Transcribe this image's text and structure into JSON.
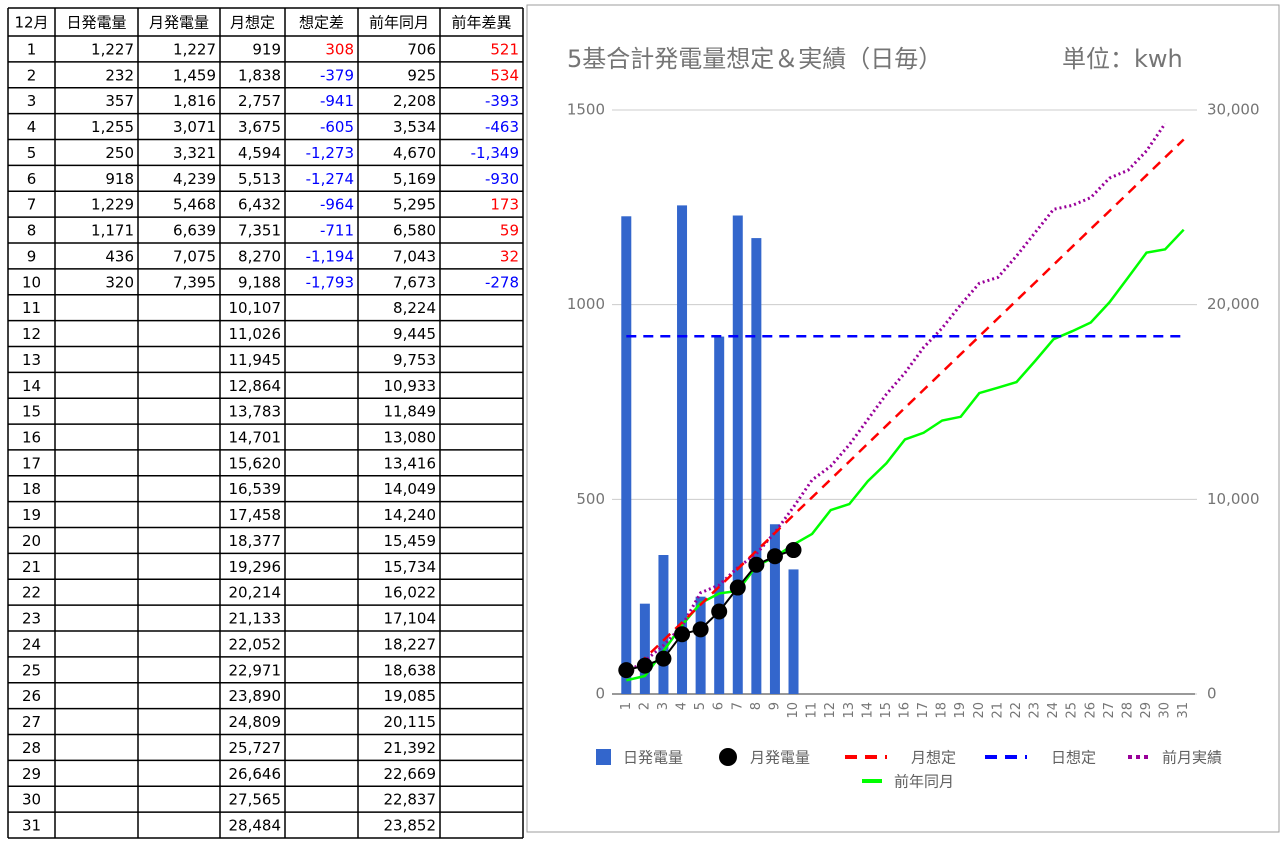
{
  "table": {
    "header": [
      "12月",
      "日発電量",
      "月発電量",
      "月想定",
      "想定差",
      "前年同月",
      "前年差異"
    ],
    "positive_color": "#ff0000",
    "negative_color": "#0000ff",
    "colored_columns": [
      4,
      6
    ],
    "rows": [
      [
        "1",
        "1,227",
        "1,227",
        "919",
        "308",
        "706",
        "521"
      ],
      [
        "2",
        "232",
        "1,459",
        "1,838",
        "-379",
        "925",
        "534"
      ],
      [
        "3",
        "357",
        "1,816",
        "2,757",
        "-941",
        "2,208",
        "-393"
      ],
      [
        "4",
        "1,255",
        "3,071",
        "3,675",
        "-605",
        "3,534",
        "-463"
      ],
      [
        "5",
        "250",
        "3,321",
        "4,594",
        "-1,273",
        "4,670",
        "-1,349"
      ],
      [
        "6",
        "918",
        "4,239",
        "5,513",
        "-1,274",
        "5,169",
        "-930"
      ],
      [
        "7",
        "1,229",
        "5,468",
        "6,432",
        "-964",
        "5,295",
        "173"
      ],
      [
        "8",
        "1,171",
        "6,639",
        "7,351",
        "-711",
        "6,580",
        "59"
      ],
      [
        "9",
        "436",
        "7,075",
        "8,270",
        "-1,194",
        "7,043",
        "32"
      ],
      [
        "10",
        "320",
        "7,395",
        "9,188",
        "-1,793",
        "7,673",
        "-278"
      ],
      [
        "11",
        null,
        null,
        "10,107",
        null,
        "8,224",
        null
      ],
      [
        "12",
        null,
        null,
        "11,026",
        null,
        "9,445",
        null
      ],
      [
        "13",
        null,
        null,
        "11,945",
        null,
        "9,753",
        null
      ],
      [
        "14",
        null,
        null,
        "12,864",
        null,
        "10,933",
        null
      ],
      [
        "15",
        null,
        null,
        "13,783",
        null,
        "11,849",
        null
      ],
      [
        "16",
        null,
        null,
        "14,701",
        null,
        "13,080",
        null
      ],
      [
        "17",
        null,
        null,
        "15,620",
        null,
        "13,416",
        null
      ],
      [
        "18",
        null,
        null,
        "16,539",
        null,
        "14,049",
        null
      ],
      [
        "19",
        null,
        null,
        "17,458",
        null,
        "14,240",
        null
      ],
      [
        "20",
        null,
        null,
        "18,377",
        null,
        "15,459",
        null
      ],
      [
        "21",
        null,
        null,
        "19,296",
        null,
        "15,734",
        null
      ],
      [
        "22",
        null,
        null,
        "20,214",
        null,
        "16,022",
        null
      ],
      [
        "23",
        null,
        null,
        "21,133",
        null,
        "17,104",
        null
      ],
      [
        "24",
        null,
        null,
        "22,052",
        null,
        "18,227",
        null
      ],
      [
        "25",
        null,
        null,
        "22,971",
        null,
        "18,638",
        null
      ],
      [
        "26",
        null,
        null,
        "23,890",
        null,
        "19,085",
        null
      ],
      [
        "27",
        null,
        null,
        "24,809",
        null,
        "20,115",
        null
      ],
      [
        "28",
        null,
        null,
        "25,727",
        null,
        "21,392",
        null
      ],
      [
        "29",
        null,
        null,
        "26,646",
        null,
        "22,669",
        null
      ],
      [
        "30",
        null,
        null,
        "27,565",
        null,
        "22,837",
        null
      ],
      [
        "31",
        null,
        null,
        "28,484",
        null,
        "23,852",
        null
      ]
    ]
  },
  "chart_data": {
    "type": "combo",
    "title": "5基合計発電量想定＆実績（日毎）",
    "unit_label": "単位：kwh",
    "categories": [
      "1",
      "2",
      "3",
      "4",
      "5",
      "6",
      "7",
      "8",
      "9",
      "10",
      "11",
      "12",
      "13",
      "14",
      "15",
      "16",
      "17",
      "18",
      "19",
      "20",
      "21",
      "22",
      "23",
      "24",
      "25",
      "26",
      "27",
      "28",
      "29",
      "30",
      "31"
    ],
    "ylim": [
      0,
      1500
    ],
    "yticks": [
      0,
      500,
      1000,
      1500
    ],
    "y2lim": [
      0,
      30000
    ],
    "y2ticks": [
      0,
      {
        "value": 10000,
        "label": "10,000"
      },
      {
        "value": 20000,
        "label": "20,000"
      },
      {
        "value": 30000,
        "label": "30,000"
      }
    ],
    "grid": true,
    "series": [
      {
        "name": "日発電量",
        "style": "bar",
        "color": "#3366cc",
        "axis": "y",
        "values": [
          1227,
          232,
          357,
          1255,
          250,
          918,
          1229,
          1171,
          436,
          320,
          null,
          null,
          null,
          null,
          null,
          null,
          null,
          null,
          null,
          null,
          null,
          null,
          null,
          null,
          null,
          null,
          null,
          null,
          null,
          null,
          null
        ]
      },
      {
        "name": "月発電量",
        "style": "line-markers",
        "color": "#000000",
        "axis": "y2",
        "values": [
          1227,
          1459,
          1816,
          3071,
          3321,
          4239,
          5468,
          6639,
          7075,
          7395,
          null,
          null,
          null,
          null,
          null,
          null,
          null,
          null,
          null,
          null,
          null,
          null,
          null,
          null,
          null,
          null,
          null,
          null,
          null,
          null,
          null
        ]
      },
      {
        "name": "月想定",
        "style": "dashed",
        "color": "#ff0000",
        "axis": "y2",
        "values": [
          919,
          1838,
          2757,
          3675,
          4594,
          5513,
          6432,
          7351,
          8270,
          9188,
          10107,
          11026,
          11945,
          12864,
          13783,
          14701,
          15620,
          16539,
          17458,
          18377,
          19296,
          20214,
          21133,
          22052,
          22971,
          23890,
          24809,
          25727,
          26646,
          27565,
          28484
        ]
      },
      {
        "name": "日想定",
        "style": "dashed",
        "color": "#0000ff",
        "axis": "y",
        "values": [
          919,
          919,
          919,
          919,
          919,
          919,
          919,
          919,
          919,
          919,
          919,
          919,
          919,
          919,
          919,
          919,
          919,
          919,
          919,
          919,
          919,
          919,
          919,
          919,
          919,
          919,
          919,
          919,
          919,
          919,
          919
        ]
      },
      {
        "name": "前月実績",
        "style": "dotted",
        "color": "#990099",
        "axis": "y2",
        "values": [
          1100,
          1700,
          2500,
          3500,
          5200,
          5600,
          6500,
          7200,
          8300,
          9600,
          11000,
          11700,
          12800,
          14100,
          15400,
          16500,
          17800,
          18800,
          20000,
          21100,
          21400,
          22500,
          23700,
          24900,
          25100,
          25500,
          26500,
          26900,
          27900,
          29300,
          null
        ]
      },
      {
        "name": "前年同月",
        "style": "line",
        "color": "#00ff00",
        "axis": "y2",
        "values": [
          706,
          925,
          2208,
          3534,
          4670,
          5169,
          5295,
          6580,
          7043,
          7673,
          8224,
          9445,
          9753,
          10933,
          11849,
          13080,
          13416,
          14049,
          14240,
          15459,
          15734,
          16022,
          17104,
          18227,
          18638,
          19085,
          20115,
          21392,
          22669,
          22837,
          23852
        ]
      }
    ]
  }
}
